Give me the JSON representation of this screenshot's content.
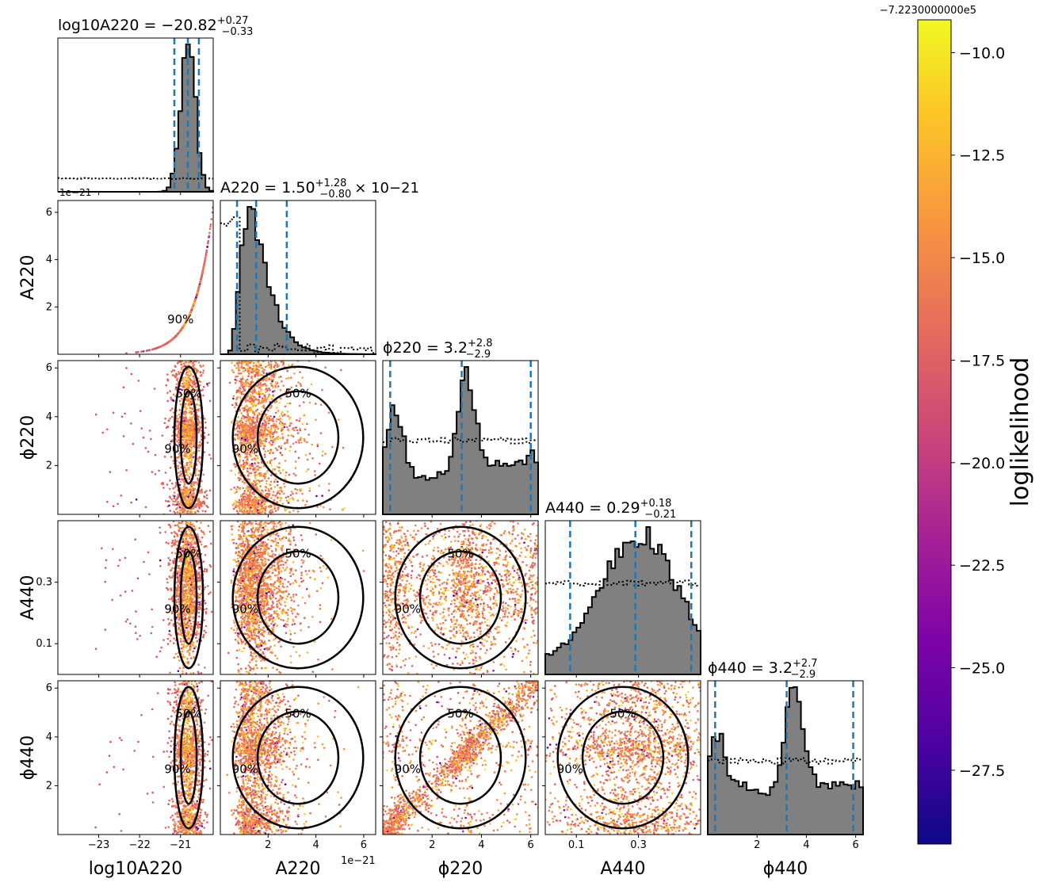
{
  "chart_data": {
    "type": "corner",
    "parameters": [
      {
        "key": "logA220",
        "axis_label": "log10A220",
        "ticks": [
          "−23",
          "−22",
          "−21"
        ],
        "tick_values": [
          -23,
          -22,
          -21
        ],
        "range": [
          -24.0,
          -20.2
        ]
      },
      {
        "key": "A220",
        "axis_label": "A220",
        "ticks": [
          "2",
          "4",
          "6"
        ],
        "tick_values": [
          2,
          4,
          6
        ],
        "range": [
          0,
          6.5
        ],
        "offset_text": "1e−21"
      },
      {
        "key": "phi220",
        "axis_label": "ϕ220",
        "ticks": [
          "2",
          "4",
          "6"
        ],
        "tick_values": [
          2,
          4,
          6
        ],
        "range": [
          0,
          6.3
        ]
      },
      {
        "key": "A440",
        "axis_label": "A440",
        "ticks": [
          "0.1",
          "0.3"
        ],
        "tick_values": [
          0.1,
          0.3
        ],
        "range": [
          0.0,
          0.5
        ]
      },
      {
        "key": "phi440",
        "axis_label": "ϕ440",
        "ticks": [
          "2",
          "4",
          "6"
        ],
        "tick_values": [
          2,
          4,
          6
        ],
        "range": [
          0,
          6.3
        ]
      }
    ],
    "diagonal_titles": [
      {
        "param": "log10A220",
        "median": "−20.82",
        "upper": "+0.27",
        "lower": "−0.33",
        "suffix": ""
      },
      {
        "param": "A220",
        "median": "1.50",
        "upper": "+1.28",
        "lower": "−0.80",
        "suffix": "× 10−21"
      },
      {
        "param": "ϕ220",
        "median": "3.2",
        "upper": "+2.8",
        "lower": "−2.9",
        "suffix": ""
      },
      {
        "param": "A440",
        "median": "0.29",
        "upper": "+0.18",
        "lower": "−0.21",
        "suffix": ""
      },
      {
        "param": "ϕ440",
        "median": "3.2",
        "upper": "+2.7",
        "lower": "−2.9",
        "suffix": ""
      }
    ],
    "quantile_lines": [
      [
        -21.15,
        -20.82,
        -20.55
      ],
      [
        0.7,
        1.5,
        2.78
      ],
      [
        0.3,
        3.2,
        6.0
      ],
      [
        0.08,
        0.29,
        0.47
      ],
      [
        0.3,
        3.2,
        5.9
      ]
    ],
    "contour_labels": [
      "50%",
      "90%"
    ],
    "colorbar": {
      "label": "loglikelihood",
      "offset_text": "−7.2230000000e5",
      "ticks": [
        "−10.0",
        "−12.5",
        "−15.0",
        "−17.5",
        "−20.0",
        "−22.5",
        "−25.0",
        "−27.5"
      ],
      "tick_values": [
        -10.0,
        -12.5,
        -15.0,
        -17.5,
        -20.0,
        -22.5,
        -25.0,
        -27.5
      ],
      "range": [
        -29.3,
        -9.2
      ],
      "colormap": "plasma"
    },
    "colors": {
      "hist_fill": "#808080",
      "quantile": "#1f77b4",
      "contour": "#000000",
      "prior": "#000000"
    },
    "grid": false,
    "legend": "none"
  }
}
